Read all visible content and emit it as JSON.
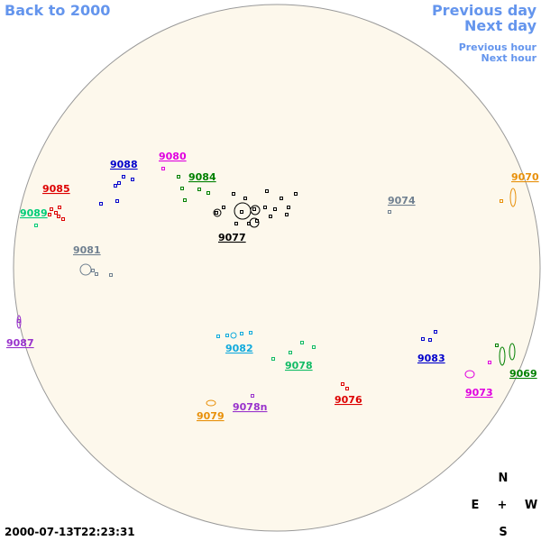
{
  "nav": {
    "back": "Back to 2000",
    "previous_day": "Previous day",
    "next_day": "Next day",
    "previous_hour": "Previous hour",
    "next_hour": "Next hour"
  },
  "timestamp": "2000-07-13T22:23:31",
  "compass": {
    "north": "N",
    "east": "E",
    "center": "+",
    "west": "W",
    "south": "S"
  },
  "regions": [
    {
      "label": "9088",
      "color": "#0000cc"
    },
    {
      "label": "9080",
      "color": "#e000e0"
    },
    {
      "label": "9084",
      "color": "#008000"
    },
    {
      "label": "9085",
      "color": "#dd0000"
    },
    {
      "label": "9089",
      "color": "#00cc77"
    },
    {
      "label": "9077",
      "color": "#000000"
    },
    {
      "label": "9074",
      "color": "#708090"
    },
    {
      "label": "9070",
      "color": "#e8900a"
    },
    {
      "label": "9081",
      "color": "#708090"
    },
    {
      "label": "9087",
      "color": "#9933cc"
    },
    {
      "label": "9082",
      "color": "#11aadd"
    },
    {
      "label": "9078",
      "color": "#11bb66"
    },
    {
      "label": "9083",
      "color": "#0000cc"
    },
    {
      "label": "9069",
      "color": "#008000"
    },
    {
      "label": "9073",
      "color": "#e000e0"
    },
    {
      "label": "9076",
      "color": "#dd0000"
    },
    {
      "label": "9079",
      "color": "#e8900a"
    },
    {
      "label": "9078n",
      "color": "#9933cc"
    }
  ]
}
